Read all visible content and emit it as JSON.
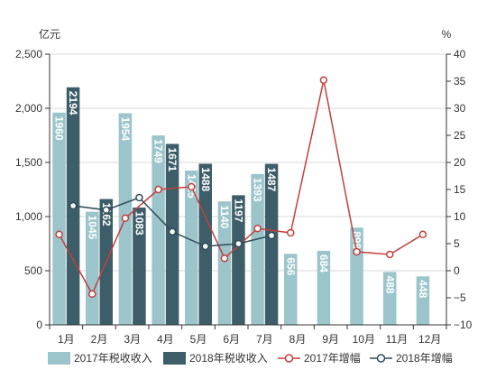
{
  "chart_data": {
    "type": "bar",
    "categories": [
      "1月",
      "2月",
      "3月",
      "4月",
      "5月",
      "6月",
      "7月",
      "8月",
      "9月",
      "10月",
      "11月",
      "12月"
    ],
    "ylabel": "亿元",
    "ylim": [
      0,
      2500
    ],
    "yticks": [
      0,
      500,
      1000,
      1500,
      2000,
      2500
    ],
    "ytick_labels": [
      "0",
      "500",
      "1,000",
      "1,500",
      "2,000",
      "2,500"
    ],
    "y2label": "%",
    "y2lim": [
      -10,
      40
    ],
    "y2ticks": [
      -10,
      -5,
      0,
      5,
      10,
      15,
      20,
      25,
      30,
      35,
      40
    ],
    "y2tick_labels": [
      "−10",
      "−5",
      "0",
      "5",
      "10",
      "15",
      "20",
      "25",
      "30",
      "35",
      "40"
    ],
    "grid": true,
    "legend": "bottom",
    "series": [
      {
        "name": "2017年税收收入",
        "type": "bar",
        "axis": "left",
        "color": "#9bc5cb",
        "values": [
          1960,
          1045,
          1954,
          1749,
          1425,
          1140,
          1393,
          656,
          684,
          898,
          488,
          448
        ]
      },
      {
        "name": "2018年税收收入",
        "type": "bar",
        "axis": "left",
        "color": "#3d5d69",
        "values": [
          2194,
          1162,
          1083,
          1671,
          1488,
          1197,
          1487,
          null,
          null,
          null,
          null,
          null
        ]
      },
      {
        "name": "2017年增幅",
        "type": "line",
        "axis": "right",
        "color": "#c2403d",
        "values": [
          6.7,
          -4.3,
          9.7,
          15.0,
          15.5,
          2.3,
          7.8,
          7.0,
          35.2,
          3.5,
          3.0,
          6.7
        ]
      },
      {
        "name": "2018年增幅",
        "type": "line",
        "axis": "right",
        "color": "#2f4c58",
        "values": [
          12.0,
          11.2,
          13.5,
          7.2,
          4.5,
          5.0,
          6.5,
          null,
          null,
          null,
          null,
          null
        ]
      }
    ]
  }
}
